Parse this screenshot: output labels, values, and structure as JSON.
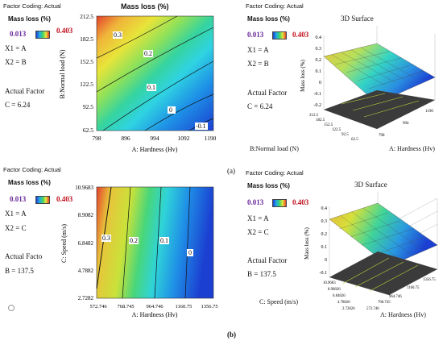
{
  "panels": [
    {
      "id": "a-contour",
      "header": "Factor Coding: Actual",
      "title": "Mass loss (%)",
      "legend_label": "Mass loss (%)",
      "min_label": "0.013",
      "max_label": "0.403",
      "factors": [
        "X1 = A",
        "X2 = B"
      ],
      "actual_factor_header": "Actual Factor",
      "actual_factor_value": "C = 6.24"
    },
    {
      "id": "a-surface",
      "header": "Factor Coding: Actual",
      "title": "3D Surface",
      "legend_label": "Mass loss (%)",
      "min_label": "0.013",
      "max_label": "0.403",
      "factors": [
        "X1 = A",
        "X2 = B"
      ],
      "actual_factor_header": "Actual Factor",
      "actual_factor_value": "C = 6.24"
    },
    {
      "id": "b-contour",
      "header": "Factor Coding: Actual",
      "title": "Mass loss (%)",
      "legend_label": "Mass loss (%)",
      "min_label": "0.013",
      "max_label": "0.403",
      "factors": [
        "X1 = A",
        "X2 = C"
      ],
      "actual_factor_header": "Actual Facto",
      "actual_factor_value": "B = 137.5"
    },
    {
      "id": "b-surface",
      "header": "Factor Coding: Actual",
      "title": "3D Surface",
      "legend_label": "Mass loss (%)",
      "min_label": "0.013",
      "max_label": "0.403",
      "factors": [
        "X1 = A",
        "X2 = C"
      ],
      "actual_factor_header": "Actual Factor",
      "actual_factor_value": "B = 137.5"
    }
  ],
  "subfigure_labels": {
    "a": "(a)",
    "b": "(b)"
  },
  "chart_data": [
    {
      "type": "heatmap",
      "title": "Mass loss (%)",
      "xlabel": "A: Hardness (Hv)",
      "ylabel": "B:Normal load (N)",
      "x_ticks": [
        "798",
        "896",
        "994",
        "1092",
        "1190"
      ],
      "y_ticks": [
        "62.5",
        "92.5",
        "122.5",
        "152.5",
        "182.5",
        "212.5"
      ],
      "xlim": [
        798,
        1190
      ],
      "ylim": [
        62.5,
        212.5
      ],
      "contours": [
        {
          "label": "0.3",
          "value": 0.3
        },
        {
          "label": "0.2",
          "value": 0.2
        },
        {
          "label": "0.1",
          "value": 0.1
        },
        {
          "label": "0",
          "value": 0
        },
        {
          "label": "-0.1",
          "value": -0.1
        }
      ],
      "colorscale": {
        "min": 0.013,
        "max": 0.403
      }
    },
    {
      "type": "surface",
      "title": "3D Surface",
      "zlabel": "Mass loss (%)",
      "xlabel": "A: Hardness (Hv)",
      "ylabel": "B:Normal load (N)",
      "x_ticks": [
        "798",
        "994",
        "1190"
      ],
      "y_ticks": [
        "212.5",
        "182.5",
        "152.5",
        "122.5",
        "92.5",
        "62.5"
      ],
      "z_ticks": [
        "0.4",
        "0.3",
        "0.2",
        "0.1",
        "0",
        "-0.1",
        "-0.2"
      ],
      "colorscale": {
        "min": 0.013,
        "max": 0.403
      }
    },
    {
      "type": "heatmap",
      "title": "",
      "xlabel": "A: Hardness (Hv)",
      "ylabel": "C: Speed (m/s)",
      "x_ticks": [
        "572.746",
        "768.745",
        "964.746",
        "1160.75",
        "1356.75"
      ],
      "y_ticks": [
        "2.7282",
        "4.7882",
        "6.8482",
        "8.9082",
        "10.9683"
      ],
      "xlim": [
        572.746,
        1356.75
      ],
      "ylim": [
        2.7282,
        10.9683
      ],
      "contours": [
        {
          "label": "0.3",
          "value": 0.3
        },
        {
          "label": "0.2",
          "value": 0.2
        },
        {
          "label": "0.1",
          "value": 0.1
        },
        {
          "label": "0",
          "value": 0
        }
      ],
      "colorscale": {
        "min": 0.013,
        "max": 0.403
      }
    },
    {
      "type": "surface",
      "title": "3D Surface",
      "zlabel": "Mass loss (%)",
      "xlabel": "A: Hardness (Hv)",
      "ylabel": "C: Speed (m/s)",
      "x_ticks": [
        "572.746",
        "768.745",
        "964.746",
        "1160.75",
        "1356.75"
      ],
      "y_ticks": [
        "10.9683",
        "8.90826",
        "6.84826",
        "4.78826",
        "2.72826"
      ],
      "z_ticks": [
        "0.4",
        "0.3",
        "0.2",
        "0.1",
        "0",
        "-0.1"
      ],
      "colorscale": {
        "min": 0.013,
        "max": 0.403
      }
    }
  ]
}
